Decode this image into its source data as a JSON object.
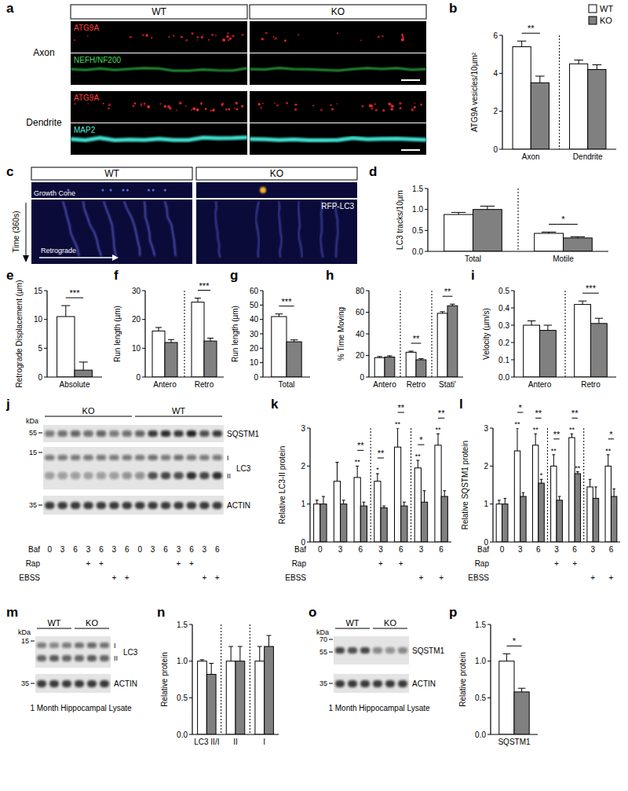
{
  "panel_labels": [
    "a",
    "b",
    "c",
    "d",
    "e",
    "f",
    "g",
    "h",
    "i",
    "j",
    "k",
    "l",
    "m",
    "n",
    "o",
    "p"
  ],
  "images": {
    "a": {
      "columns": [
        "WT",
        "KO"
      ],
      "rows": [
        {
          "region": "Axon",
          "channels": [
            "ATG9A",
            "NEFH/NF200"
          ]
        },
        {
          "region": "Dendrite",
          "channels": [
            "ATG9A",
            "MAP2"
          ]
        }
      ]
    },
    "c": {
      "columns": [
        "WT",
        "KO"
      ],
      "strip_label": "Growth Cone",
      "stain": "RFP-LC3",
      "time_label": "Time (360s)",
      "direction_label": "Retrograde"
    },
    "j": {
      "groups": [
        "KO",
        "WT"
      ],
      "unit": "kDa",
      "proteins": [
        {
          "name": "SQSTM1",
          "markers": [
            55
          ]
        },
        {
          "name": "LC3",
          "markers": [
            15
          ],
          "forms": [
            "I",
            "II"
          ]
        },
        {
          "name": "ACTIN",
          "markers": [
            35
          ]
        }
      ],
      "rows": [
        {
          "name": "Baf",
          "labels": [
            "0",
            "3",
            "6",
            "3",
            "6",
            "3",
            "6",
            "0",
            "3",
            "6",
            "3",
            "6",
            "3",
            "6"
          ]
        },
        {
          "name": "Rap",
          "labels": [
            null,
            null,
            null,
            "+",
            "+",
            null,
            null,
            null,
            null,
            null,
            "+",
            "+",
            null,
            null
          ]
        },
        {
          "name": "EBSS",
          "labels": [
            null,
            null,
            null,
            null,
            null,
            "+",
            "+",
            null,
            null,
            null,
            null,
            null,
            "+",
            "+"
          ]
        }
      ]
    },
    "m": {
      "groups": [
        "WT",
        "KO"
      ],
      "unit": "kDa",
      "proteins": [
        {
          "name": "LC3",
          "markers": [
            15
          ],
          "forms": [
            "I",
            "II"
          ]
        },
        {
          "name": "ACTIN",
          "markers": [
            35
          ]
        }
      ],
      "caption": "1 Month Hippocampal Lysate"
    },
    "o": {
      "groups": [
        "WT",
        "KO"
      ],
      "unit": "kDa",
      "proteins": [
        {
          "name": "SQSTM1",
          "markers": [
            70,
            55
          ]
        },
        {
          "name": "ACTIN",
          "markers": [
            35
          ]
        }
      ],
      "caption": "1 Month Hippocampal Lysate"
    }
  },
  "chart_data": [
    {
      "type": "bar",
      "ylabel": "ATG9A vesicles/10µm²",
      "categories": [
        "Axon",
        "Dendrite"
      ],
      "series": [
        {
          "name": "WT",
          "color": "#ffffff",
          "values": [
            5.4,
            4.5
          ],
          "errors": [
            0.3,
            0.2
          ]
        },
        {
          "name": "KO",
          "color": "#808080",
          "values": [
            3.5,
            4.2
          ],
          "errors": [
            0.35,
            0.25
          ]
        }
      ],
      "ylim": [
        0,
        6
      ],
      "yticks": [
        0,
        2,
        4,
        6
      ],
      "legend": "top-right",
      "annotations": [
        {
          "text": "**",
          "category": 0
        }
      ]
    },
    {
      "type": "bar",
      "ylabel": "LC3 tracks/10µm",
      "categories": [
        "Total",
        "Motile"
      ],
      "series": [
        {
          "name": "WT",
          "color": "#ffffff",
          "values": [
            0.88,
            0.43
          ],
          "errors": [
            0.05,
            0.03
          ]
        },
        {
          "name": "KO",
          "color": "#808080",
          "values": [
            1.0,
            0.32
          ],
          "errors": [
            0.08,
            0.03
          ]
        }
      ],
      "ylim": [
        0,
        1.5
      ],
      "yticks": [
        {
          "value": 0,
          "label": "0.0"
        },
        0.5,
        {
          "value": 1,
          "label": "1.0"
        },
        1.5
      ],
      "annotations": [
        {
          "text": "*",
          "category": 1
        }
      ]
    },
    {
      "type": "bar",
      "ylabel": "Retrograde Displacement (µm)",
      "categories": [
        "Absolute"
      ],
      "series": [
        {
          "name": "WT",
          "color": "#ffffff",
          "values": [
            10.5
          ],
          "errors": [
            1.9
          ]
        },
        {
          "name": "KO",
          "color": "#808080",
          "values": [
            1.2
          ],
          "errors": [
            1.4
          ]
        }
      ],
      "ylim": [
        0,
        15
      ],
      "yticks": [
        0,
        5,
        10,
        15
      ],
      "annotations": [
        {
          "text": "***",
          "category": 0
        }
      ]
    },
    {
      "type": "bar",
      "ylabel": "Run length (µm)",
      "categories": [
        "Antero",
        "Retro"
      ],
      "series": [
        {
          "name": "WT",
          "color": "#ffffff",
          "values": [
            16,
            26
          ],
          "errors": [
            1.2,
            1.4
          ]
        },
        {
          "name": "KO",
          "color": "#808080",
          "values": [
            12,
            12.5
          ],
          "errors": [
            1.0,
            1.0
          ]
        }
      ],
      "ylim": [
        0,
        30
      ],
      "yticks": [
        0,
        10,
        20,
        30
      ],
      "annotations": [
        {
          "text": "***",
          "category": 1
        }
      ]
    },
    {
      "type": "bar",
      "ylabel": "Run length (µm)",
      "categories": [
        "Total"
      ],
      "series": [
        {
          "name": "WT",
          "color": "#ffffff",
          "values": [
            42
          ],
          "errors": [
            1.8
          ]
        },
        {
          "name": "KO",
          "color": "#808080",
          "values": [
            24.5
          ],
          "errors": [
            1.3
          ]
        }
      ],
      "ylim": [
        0,
        60
      ],
      "yticks": [
        0,
        10,
        20,
        30,
        40,
        50,
        60
      ],
      "annotations": [
        {
          "text": "***",
          "category": 0
        }
      ]
    },
    {
      "type": "bar",
      "ylabel": "% Time Moving",
      "categories": [
        "Antero",
        "Retro",
        "Stati'"
      ],
      "series": [
        {
          "name": "WT",
          "color": "#ffffff",
          "values": [
            18,
            23,
            59
          ],
          "errors": [
            1.0,
            1.0,
            1.5
          ]
        },
        {
          "name": "KO",
          "color": "#808080",
          "values": [
            18.5,
            16,
            66
          ],
          "errors": [
            1.2,
            1.0,
            1.5
          ]
        }
      ],
      "ylim": [
        0,
        80
      ],
      "yticks": [
        0,
        20,
        40,
        60,
        80
      ],
      "annotations": [
        {
          "text": "**",
          "category": 1
        },
        {
          "text": "**",
          "category": 2
        }
      ]
    },
    {
      "type": "bar",
      "ylabel": "Velocity (µm/s)",
      "categories": [
        "Antero",
        "Retro"
      ],
      "series": [
        {
          "name": "WT",
          "color": "#ffffff",
          "values": [
            0.3,
            0.42
          ],
          "errors": [
            0.025,
            0.02
          ]
        },
        {
          "name": "KO",
          "color": "#808080",
          "values": [
            0.27,
            0.31
          ],
          "errors": [
            0.03,
            0.03
          ]
        }
      ],
      "ylim": [
        0,
        0.5
      ],
      "yticks": [
        {
          "value": 0,
          "label": "0.0"
        },
        0.1,
        0.2,
        0.3,
        0.4,
        0.5
      ],
      "annotations": [
        {
          "text": "***",
          "category": 1
        }
      ]
    },
    {
      "type": "bar",
      "ylabel": "Relative LC3-II protein",
      "xlabel": "Baf",
      "categories": [
        "0",
        "3",
        "6",
        "3",
        "6",
        "3",
        "6"
      ],
      "x_rows": [
        {
          "name": "Rap",
          "labels": [
            null,
            null,
            null,
            "+",
            "+",
            null,
            null
          ]
        },
        {
          "name": "EBSS",
          "labels": [
            null,
            null,
            null,
            null,
            null,
            "+",
            "+"
          ]
        }
      ],
      "series": [
        {
          "name": "WT",
          "color": "#ffffff",
          "values": [
            1,
            1.6,
            1.7,
            1.6,
            2.5,
            1.95,
            2.55
          ],
          "errors": [
            0.1,
            0.5,
            0.3,
            0.2,
            0.5,
            0.2,
            0.3
          ],
          "stars": [
            null,
            null,
            "**",
            "*",
            "**",
            "**",
            "**"
          ]
        },
        {
          "name": "KO",
          "color": "#808080",
          "values": [
            1,
            1.0,
            0.95,
            0.9,
            0.95,
            1.05,
            1.2
          ],
          "errors": [
            0.2,
            0.1,
            0.1,
            0.05,
            0.1,
            0.3,
            0.15
          ]
        }
      ],
      "ylim": [
        0,
        3
      ],
      "yticks": [
        0,
        1,
        2,
        3
      ],
      "annotations": [
        {
          "text": "**",
          "category": 2
        },
        {
          "text": "**",
          "category": 3
        },
        {
          "text": "**",
          "category": 4
        },
        {
          "text": "*",
          "category": 5
        },
        {
          "text": "**",
          "category": 6
        }
      ]
    },
    {
      "type": "bar",
      "ylabel": "Relative SQSTM1 protein",
      "xlabel": "Baf",
      "categories": [
        "0",
        "3",
        "6",
        "3",
        "6",
        "3",
        "6"
      ],
      "x_rows": [
        {
          "name": "Rap",
          "labels": [
            null,
            null,
            null,
            "+",
            "+",
            null,
            null
          ]
        },
        {
          "name": "EBSS",
          "labels": [
            null,
            null,
            null,
            null,
            null,
            "+",
            "+"
          ]
        }
      ],
      "series": [
        {
          "name": "WT",
          "color": "#ffffff",
          "values": [
            1,
            2.4,
            2.55,
            2.0,
            2.75,
            1.45,
            2.0
          ],
          "errors": [
            0.1,
            0.6,
            0.3,
            0.3,
            0.1,
            0.2,
            0.3
          ],
          "stars": [
            null,
            "**",
            "**",
            "**",
            "**",
            null,
            "**"
          ]
        },
        {
          "name": "KO",
          "color": "#808080",
          "values": [
            1,
            1.2,
            1.55,
            1.1,
            1.8,
            1.15,
            1.2
          ],
          "errors": [
            0.15,
            0.1,
            0.1,
            0.1,
            0.05,
            0.3,
            0.2
          ],
          "stars": [
            null,
            null,
            "*",
            null,
            "**",
            null,
            null
          ]
        }
      ],
      "ylim": [
        0,
        3
      ],
      "yticks": [
        0,
        1,
        2,
        3
      ],
      "annotations": [
        {
          "text": "*",
          "category": 1
        },
        {
          "text": "**",
          "category": 2
        },
        {
          "text": "**",
          "category": 3
        },
        {
          "text": "**",
          "category": 4
        },
        {
          "text": "*",
          "category": 6
        }
      ]
    },
    {
      "type": "bar",
      "ylabel": "Relative protein",
      "categories": [
        "LC3 II/I",
        "II",
        "I"
      ],
      "series": [
        {
          "name": "WT",
          "color": "#ffffff",
          "values": [
            1.0,
            1.0,
            1.0
          ],
          "errors": [
            0.02,
            0.2,
            0.2
          ]
        },
        {
          "name": "KO",
          "color": "#808080",
          "values": [
            0.82,
            1.0,
            1.2
          ],
          "errors": [
            0.15,
            0.2,
            0.15
          ]
        }
      ],
      "ylim": [
        0,
        1.5
      ],
      "yticks": [
        {
          "value": 0,
          "label": "0.0"
        },
        0.5,
        {
          "value": 1,
          "label": "1.0"
        },
        1.5
      ]
    },
    {
      "type": "bar",
      "ylabel": "Relative protein",
      "categories": [
        "SQSTM1"
      ],
      "series": [
        {
          "name": "WT",
          "color": "#ffffff",
          "values": [
            1.0
          ],
          "errors": [
            0.1
          ]
        },
        {
          "name": "KO",
          "color": "#808080",
          "values": [
            0.58
          ],
          "errors": [
            0.05
          ]
        }
      ],
      "ylim": [
        0,
        1.5
      ],
      "yticks": [
        {
          "value": 0,
          "label": "0.0"
        },
        0.5,
        {
          "value": 1,
          "label": "1.0"
        },
        1.5
      ],
      "annotations": [
        {
          "text": "*",
          "category": 0
        }
      ]
    }
  ]
}
